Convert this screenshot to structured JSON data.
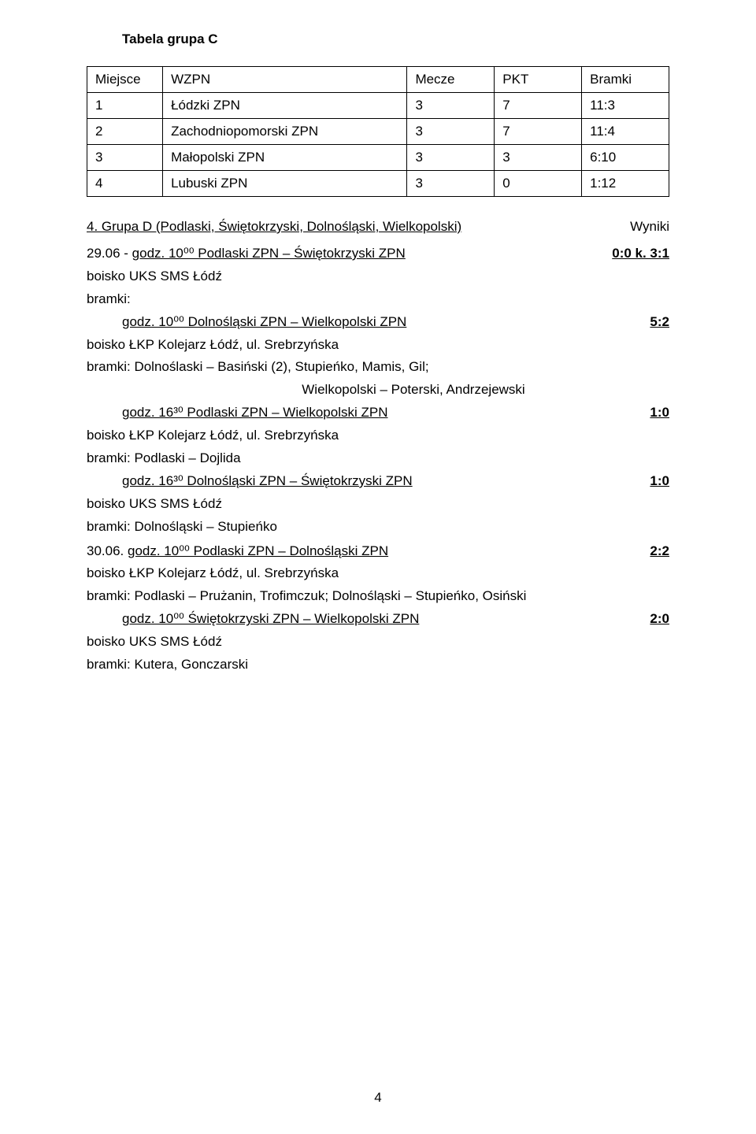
{
  "heading": "Tabela grupa C",
  "table": {
    "columns": [
      "Miejsce",
      "WZPN",
      "Mecze",
      "PKT",
      "Bramki"
    ],
    "rows": [
      [
        "1",
        "Łódzki ZPN",
        "3",
        "7",
        "11:3"
      ],
      [
        "2",
        "Zachodniopomorski ZPN",
        "3",
        "7",
        "11:4"
      ],
      [
        "3",
        "Małopolski ZPN",
        "3",
        "3",
        "6:10"
      ],
      [
        "4",
        "Lubuski ZPN",
        "3",
        "0",
        "1:12"
      ]
    ]
  },
  "section": {
    "title_left": "4. Grupa D (Podlaski, Świętokrzyski, Dolnośląski, Wielkopolski)",
    "title_right": "Wyniki"
  },
  "body": {
    "l1_plain": "29.06 - ",
    "l1_match": "godz. 10⁰⁰  Podlaski ZPN – Świętokrzyski ZPN",
    "l1_score": "0:0 k. 3:1",
    "l2": "boisko UKS SMS Łódź",
    "l3": "bramki:",
    "l4_match": " godz. 10⁰⁰ Dolnośląski ZPN – Wielkopolski ZPN",
    "l4_score": "5:2",
    "l5": "boisko ŁKP Kolejarz Łódź, ul. Srebrzyńska",
    "l6": "bramki: Dolnoślaski – Basiński (2), Stupieńko, Mamis, Gil;",
    "l7": "Wielkopolski – Poterski, Andrzejewski",
    "l8_match": "godz. 16³⁰ Podlaski ZPN – Wielkopolski ZPN",
    "l8_score": "1:0",
    "l9": "boisko ŁKP Kolejarz Łódź, ul. Srebrzyńska",
    "l10": "bramki: Podlaski – Dojlida",
    "l11_match": "godz. 16³⁰ Dolnośląski ZPN – Świętokrzyski ZPN",
    "l11_score": "1:0",
    "l12": "boisko UKS SMS Łódź",
    "l13": "bramki: Dolnośląski – Stupieńko",
    "l14_plain": "30.06. ",
    "l14_match": "godz. 10⁰⁰ Podlaski ZPN – Dolnośląski ZPN",
    "l14_score": "2:2",
    "l15": "boisko ŁKP Kolejarz Łódź, ul. Srebrzyńska",
    "l16": "bramki: Podlaski – Prużanin, Trofimczuk; Dolnośląski – Stupieńko, Osiński",
    "l17_match": "godz. 10⁰⁰ Świętokrzyski ZPN – Wielkopolski ZPN",
    "l17_score": "2:0",
    "l18": "boisko UKS SMS Łódź",
    "l19": "bramki: Kutera, Gonczarski"
  },
  "page_number": "4"
}
